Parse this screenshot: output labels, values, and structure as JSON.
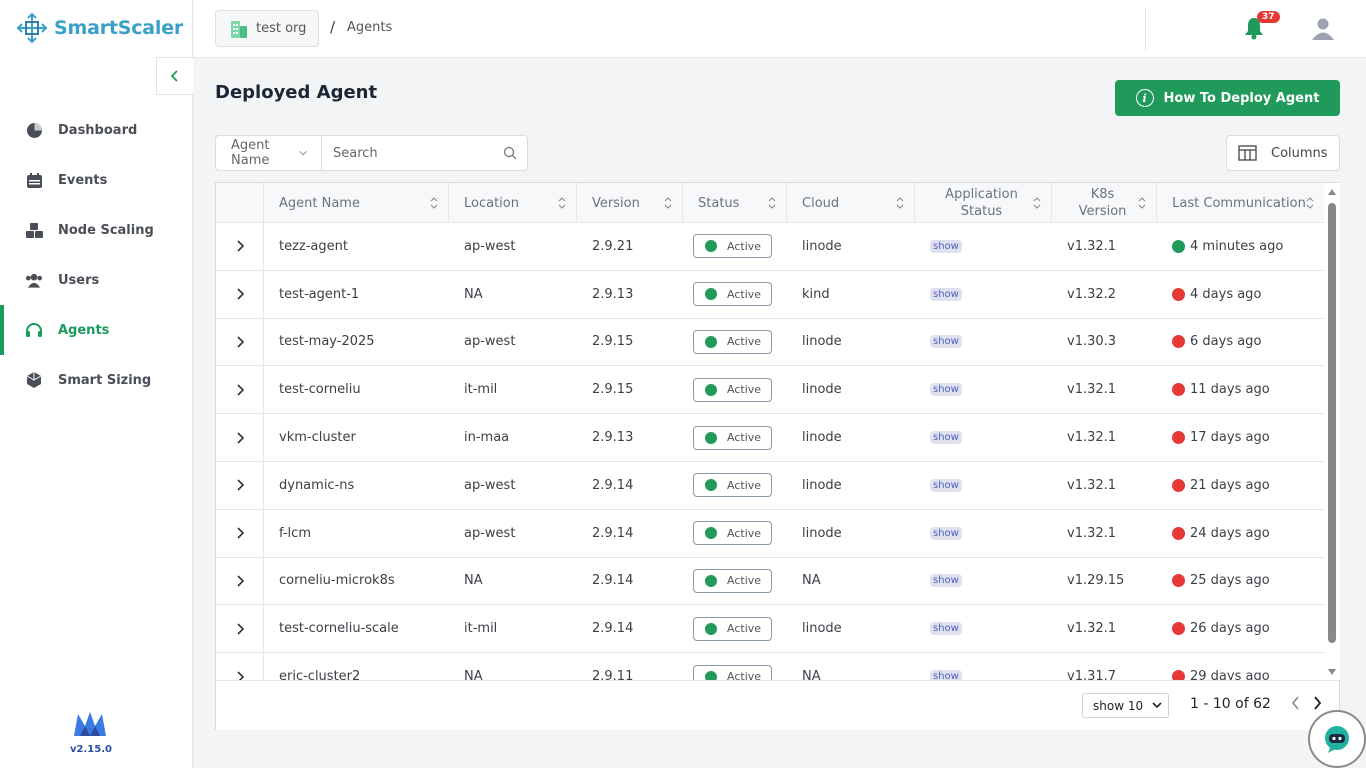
{
  "app": {
    "name": "SmartScaler",
    "version": "v2.15.0"
  },
  "sidebar": {
    "items": [
      {
        "label": "Dashboard",
        "icon": "pie-chart-icon",
        "active": false
      },
      {
        "label": "Events",
        "icon": "calendar-icon",
        "active": false
      },
      {
        "label": "Node Scaling",
        "icon": "cubes-icon",
        "active": false
      },
      {
        "label": "Users",
        "icon": "users-icon",
        "active": false
      },
      {
        "label": "Agents",
        "icon": "headset-icon",
        "active": true
      },
      {
        "label": "Smart Sizing",
        "icon": "box-sizing-icon",
        "active": false
      }
    ]
  },
  "header": {
    "org": "test org",
    "breadcrumb_sep": "/",
    "breadcrumb_current": "Agents",
    "notification_count": "37"
  },
  "main": {
    "title": "Deployed Agent",
    "deploy_button": "How To Deploy Agent",
    "filter_select": "Agent Name",
    "search_placeholder": "Search",
    "columns_button": "Columns"
  },
  "table": {
    "headers": {
      "name": "Agent Name",
      "location": "Location",
      "version": "Version",
      "status": "Status",
      "cloud": "Cloud",
      "app_status": "Application Status",
      "k8s": "K8s Version",
      "last_comm": "Last Communication"
    },
    "rows": [
      {
        "name": "tezz-agent",
        "location": "ap-west",
        "version": "2.9.21",
        "status": "Active",
        "cloud": "linode",
        "app_status": "show",
        "k8s": "v1.32.1",
        "last_comm": "4 minutes ago",
        "comm_status": "online"
      },
      {
        "name": "test-agent-1",
        "location": "NA",
        "version": "2.9.13",
        "status": "Active",
        "cloud": "kind",
        "app_status": "show",
        "k8s": "v1.32.2",
        "last_comm": "4 days ago",
        "comm_status": "offline"
      },
      {
        "name": "test-may-2025",
        "location": "ap-west",
        "version": "2.9.15",
        "status": "Active",
        "cloud": "linode",
        "app_status": "show",
        "k8s": "v1.30.3",
        "last_comm": "6 days ago",
        "comm_status": "offline"
      },
      {
        "name": "test-corneliu",
        "location": "it-mil",
        "version": "2.9.15",
        "status": "Active",
        "cloud": "linode",
        "app_status": "show",
        "k8s": "v1.32.1",
        "last_comm": "11 days ago",
        "comm_status": "offline"
      },
      {
        "name": "vkm-cluster",
        "location": "in-maa",
        "version": "2.9.13",
        "status": "Active",
        "cloud": "linode",
        "app_status": "show",
        "k8s": "v1.32.1",
        "last_comm": "17 days ago",
        "comm_status": "offline"
      },
      {
        "name": "dynamic-ns",
        "location": "ap-west",
        "version": "2.9.14",
        "status": "Active",
        "cloud": "linode",
        "app_status": "show",
        "k8s": "v1.32.1",
        "last_comm": "21 days ago",
        "comm_status": "offline"
      },
      {
        "name": "f-lcm",
        "location": "ap-west",
        "version": "2.9.14",
        "status": "Active",
        "cloud": "linode",
        "app_status": "show",
        "k8s": "v1.32.1",
        "last_comm": "24 days ago",
        "comm_status": "offline"
      },
      {
        "name": "corneliu-microk8s",
        "location": "NA",
        "version": "2.9.14",
        "status": "Active",
        "cloud": "NA",
        "app_status": "show",
        "k8s": "v1.29.15",
        "last_comm": "25 days ago",
        "comm_status": "offline"
      },
      {
        "name": "test-corneliu-scale",
        "location": "it-mil",
        "version": "2.9.14",
        "status": "Active",
        "cloud": "linode",
        "app_status": "show",
        "k8s": "v1.32.1",
        "last_comm": "26 days ago",
        "comm_status": "offline"
      },
      {
        "name": "eric-cluster2",
        "location": "NA",
        "version": "2.9.11",
        "status": "Active",
        "cloud": "NA",
        "app_status": "show",
        "k8s": "v1.31.7",
        "last_comm": "29 days ago",
        "comm_status": "offline"
      }
    ]
  },
  "pagination": {
    "page_size": "show 10",
    "range": "1 - 10 of 62"
  },
  "colors": {
    "accent": "#1f9a5b",
    "online": "#1f9a5b",
    "offline": "#e53935",
    "brand": "#3aa0c8"
  }
}
